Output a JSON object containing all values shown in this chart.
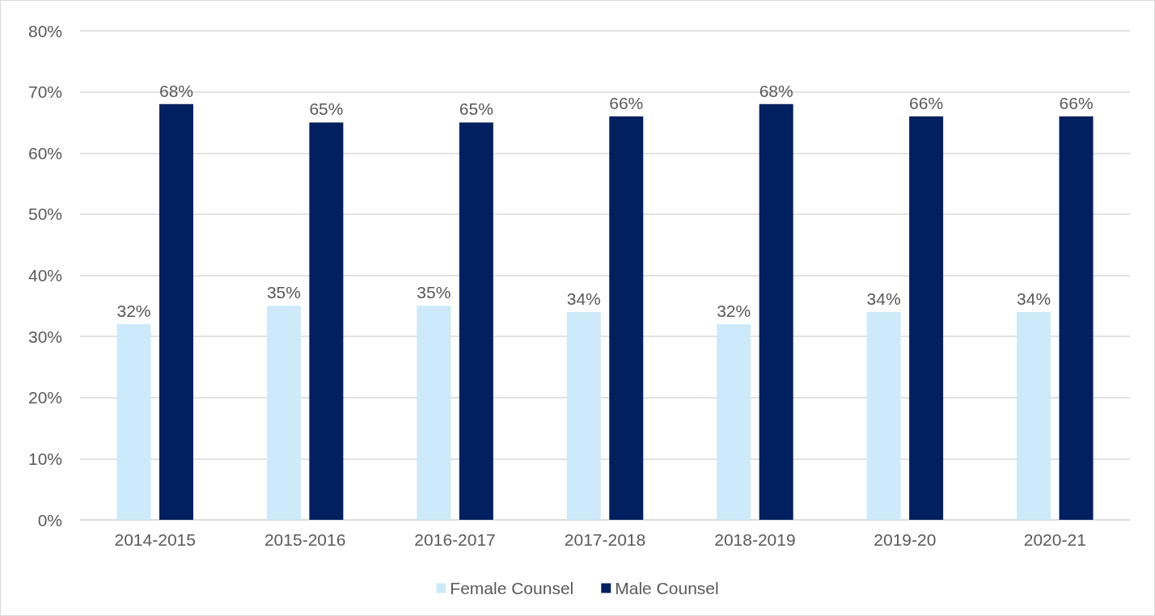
{
  "chart_data": {
    "type": "bar",
    "categories": [
      "2014-2015",
      "2015-2016",
      "2016-2017",
      "2017-2018",
      "2018-2019",
      "2019-20",
      "2020-21"
    ],
    "series": [
      {
        "name": "Female Counsel",
        "color": "#cceaf9",
        "values": [
          32,
          35,
          35,
          34,
          32,
          34,
          34
        ],
        "value_labels": [
          "32%",
          "35%",
          "35%",
          "34%",
          "32%",
          "34%",
          "34%"
        ]
      },
      {
        "name": "Male Counsel",
        "color": "#002060",
        "values": [
          68,
          65,
          65,
          66,
          68,
          66,
          66
        ],
        "value_labels": [
          "68%",
          "65%",
          "65%",
          "66%",
          "68%",
          "66%",
          "66%"
        ]
      }
    ],
    "ylim": [
      0,
      80
    ],
    "yticks": [
      {
        "value": 0,
        "label": "0%"
      },
      {
        "value": 10,
        "label": "10%"
      },
      {
        "value": 20,
        "label": "20%"
      },
      {
        "value": 30,
        "label": "30%"
      },
      {
        "value": 40,
        "label": "40%"
      },
      {
        "value": 50,
        "label": "50%"
      },
      {
        "value": 60,
        "label": "60%"
      },
      {
        "value": 70,
        "label": "70%"
      },
      {
        "value": 80,
        "label": "80%"
      }
    ],
    "grid": "y",
    "legend": "bottom"
  }
}
